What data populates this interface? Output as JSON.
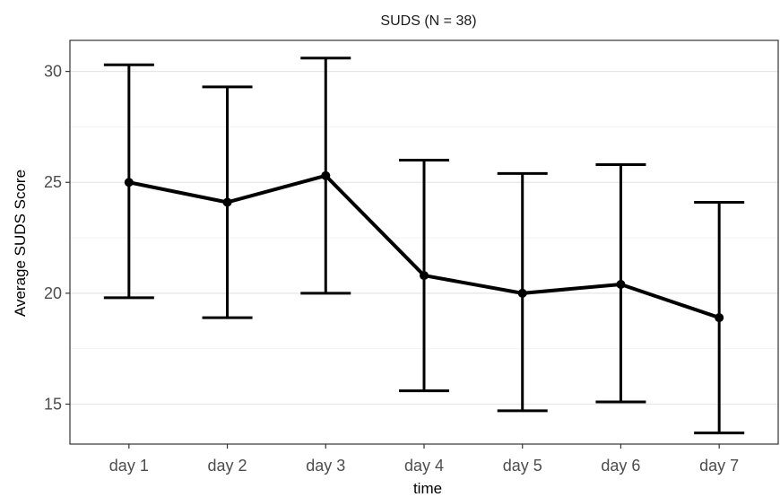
{
  "chart_data": {
    "type": "line",
    "title": "SUDS (N = 38)",
    "xlabel": "time",
    "ylabel": "Average SUDS Score",
    "categories": [
      "day 1",
      "day 2",
      "day 3",
      "day 4",
      "day 5",
      "day 6",
      "day 7"
    ],
    "series": [
      {
        "values": [
          25.0,
          24.1,
          25.3,
          20.8,
          20.0,
          20.4,
          18.9
        ],
        "lower": [
          19.8,
          18.9,
          20.0,
          15.6,
          14.7,
          15.1,
          13.7
        ],
        "upper": [
          30.3,
          29.3,
          30.6,
          26.0,
          25.4,
          25.8,
          24.1
        ]
      }
    ],
    "yticks": [
      15,
      20,
      25,
      30
    ],
    "ylim": [
      13.2,
      31.4
    ],
    "grid": true,
    "legend": "none",
    "colors": {
      "line": "#000000",
      "grid": "#e6e6e6",
      "border": "#333333"
    }
  }
}
